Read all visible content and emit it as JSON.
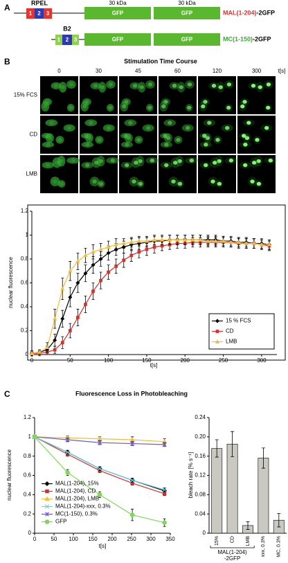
{
  "panel_a": {
    "label": "A",
    "rpel": "RPEL",
    "b2": "B2",
    "kda": [
      "30 kDa",
      "30 kDa"
    ],
    "constructs": [
      {
        "boxes": [
          "1",
          "2",
          "3"
        ],
        "gfp": [
          "GFP",
          "GFP"
        ],
        "name": "MAL(1-204)",
        "suffix": "-2GFP"
      },
      {
        "boxes": [
          "1",
          "2",
          "3"
        ],
        "gfp": [
          "GFP",
          "GFP"
        ],
        "name": "MC(1-150)",
        "suffix": "-2GFP"
      }
    ]
  },
  "panel_b": {
    "label": "B",
    "title": "Stimulation Time Course",
    "times": [
      0,
      30,
      45,
      60,
      120,
      300
    ],
    "time_unit": "t[s]",
    "rows": [
      "15% FCS",
      "CD",
      "LMB"
    ]
  },
  "panel_c": {
    "label": "C",
    "title": "Fluorescence Loss in Photobleaching"
  },
  "chart_data": [
    {
      "type": "line",
      "x": [
        0,
        10,
        20,
        30,
        40,
        50,
        60,
        70,
        80,
        90,
        100,
        110,
        120,
        130,
        140,
        150,
        160,
        170,
        180,
        190,
        200,
        210,
        220,
        230,
        240,
        250,
        260,
        270,
        280,
        290,
        300,
        310
      ],
      "series": [
        {
          "name": "15 % FCS",
          "color": "#000000",
          "marker": "diamond",
          "values": [
            0.01,
            0.02,
            0.04,
            0.12,
            0.3,
            0.48,
            0.6,
            0.68,
            0.75,
            0.8,
            0.85,
            0.88,
            0.9,
            0.92,
            0.93,
            0.94,
            0.95,
            0.95,
            0.96,
            0.96,
            0.96,
            0.96,
            0.96,
            0.96,
            0.96,
            0.95,
            0.95,
            0.94,
            0.94,
            0.93,
            0.93,
            0.92
          ],
          "errors": [
            0.02,
            0.02,
            0.03,
            0.05,
            0.07,
            0.08,
            0.08,
            0.07,
            0.07,
            0.06,
            0.06,
            0.05,
            0.05,
            0.05,
            0.05,
            0.04,
            0.04,
            0.04,
            0.04,
            0.04,
            0.04,
            0.04,
            0.04,
            0.04,
            0.04,
            0.04,
            0.04,
            0.04,
            0.04,
            0.04,
            0.04,
            0.04
          ]
        },
        {
          "name": "CD",
          "color": "#d6302a",
          "marker": "square",
          "values": [
            0.01,
            0.01,
            0.02,
            0.04,
            0.1,
            0.2,
            0.31,
            0.42,
            0.53,
            0.62,
            0.69,
            0.74,
            0.79,
            0.83,
            0.86,
            0.88,
            0.9,
            0.91,
            0.92,
            0.93,
            0.93,
            0.94,
            0.94,
            0.94,
            0.94,
            0.94,
            0.94,
            0.93,
            0.93,
            0.93,
            0.92,
            0.91
          ],
          "errors": [
            0.02,
            0.02,
            0.02,
            0.03,
            0.05,
            0.06,
            0.07,
            0.07,
            0.07,
            0.07,
            0.06,
            0.06,
            0.06,
            0.05,
            0.05,
            0.05,
            0.05,
            0.04,
            0.04,
            0.04,
            0.04,
            0.04,
            0.04,
            0.04,
            0.04,
            0.04,
            0.04,
            0.04,
            0.04,
            0.04,
            0.04,
            0.04
          ]
        },
        {
          "name": "LMB",
          "color": "#f2bd3a",
          "marker": "triangle",
          "values": [
            0.01,
            0.02,
            0.06,
            0.3,
            0.55,
            0.7,
            0.78,
            0.83,
            0.86,
            0.88,
            0.9,
            0.92,
            0.93,
            0.94,
            0.95,
            0.95,
            0.96,
            0.96,
            0.96,
            0.96,
            0.96,
            0.96,
            0.96,
            0.95,
            0.95,
            0.95,
            0.94,
            0.94,
            0.93,
            0.93,
            0.92,
            0.92
          ],
          "errors": [
            0.02,
            0.02,
            0.04,
            0.08,
            0.09,
            0.08,
            0.07,
            0.06,
            0.06,
            0.05,
            0.05,
            0.05,
            0.04,
            0.04,
            0.04,
            0.04,
            0.04,
            0.04,
            0.04,
            0.04,
            0.04,
            0.04,
            0.04,
            0.04,
            0.04,
            0.04,
            0.04,
            0.04,
            0.04,
            0.04,
            0.04,
            0.04
          ]
        }
      ],
      "xlim": [
        0,
        320
      ],
      "xticks": [
        0,
        50,
        100,
        150,
        200,
        250,
        300
      ],
      "ylim": [
        0,
        1.2
      ],
      "yticks": [
        0,
        0.2,
        0.4,
        0.6,
        0.8,
        1,
        1.2
      ],
      "x_label": "t[s]",
      "y_label": "nuclear fluorescence",
      "legend": "lower right"
    },
    {
      "type": "line",
      "x": [
        0,
        85,
        168,
        252,
        335
      ],
      "series": [
        {
          "name": "MAL(1-204), 15%",
          "color": "#000000",
          "marker": "diamond",
          "values": [
            1,
            0.84,
            0.67,
            0.55,
            0.44
          ],
          "errors": [
            0.01,
            0.02,
            0.02,
            0.02,
            0.02
          ]
        },
        {
          "name": "MAL(1-204), CD",
          "color": "#d6302a",
          "marker": "square",
          "values": [
            1,
            0.82,
            0.65,
            0.52,
            0.41
          ],
          "errors": [
            0.01,
            0.02,
            0.02,
            0.02,
            0.02
          ]
        },
        {
          "name": "MAL(1-204), LMB",
          "color": "#f0be3c",
          "marker": "triangle",
          "values": [
            1,
            0.99,
            0.98,
            0.97,
            0.95
          ],
          "errors": [
            0.01,
            0.02,
            0.02,
            0.03,
            0.03
          ]
        },
        {
          "name": "MAL(1-204)-xxx, 0.3%",
          "color": "#5fd3e8",
          "marker": "x",
          "values": [
            1,
            0.84,
            0.67,
            0.55,
            0.45
          ],
          "errors": [
            0.01,
            0.02,
            0.02,
            0.02,
            0.02
          ]
        },
        {
          "name": "MC(1-150), 0.3%",
          "color": "#6a5acd",
          "marker": "star",
          "values": [
            1,
            0.97,
            0.94,
            0.93,
            0.92
          ],
          "errors": [
            0.01,
            0.02,
            0.02,
            0.02,
            0.02
          ]
        },
        {
          "name": "GFP",
          "color": "#7ed957",
          "marker": "circle",
          "values": [
            1,
            0.63,
            0.4,
            0.19,
            0.11
          ],
          "errors": [
            0.01,
            0.03,
            0.03,
            0.06,
            0.04
          ]
        }
      ],
      "xlim": [
        0,
        350
      ],
      "xticks": [
        0,
        50,
        100,
        150,
        200,
        250,
        300,
        350
      ],
      "ylim": [
        0,
        1.2
      ],
      "yticks": [
        0,
        0.2,
        0.4,
        0.6,
        0.8,
        1,
        1.2
      ],
      "x_label": "t[s]",
      "y_label": "nuclear fluorescence",
      "legend": "lower left"
    },
    {
      "type": "bar",
      "categories": [
        "15%",
        "CD",
        "LMB",
        "xxx, 0.3%",
        "MC, 0.3%"
      ],
      "values": [
        0.176,
        0.185,
        0.016,
        0.156,
        0.027
      ],
      "errors": [
        0.018,
        0.026,
        0.008,
        0.021,
        0.014
      ],
      "color": "#c9c9c1",
      "ylim": [
        0,
        0.24
      ],
      "yticks": [
        0,
        0.04,
        0.08,
        0.12,
        0.16,
        {
          "value": 0.2,
          "label": "0.20"
        },
        0.24
      ],
      "y_label": "bleach rate [% s⁻¹]",
      "group_label": [
        "MAL(1-204)",
        "-2GFP"
      ]
    }
  ]
}
